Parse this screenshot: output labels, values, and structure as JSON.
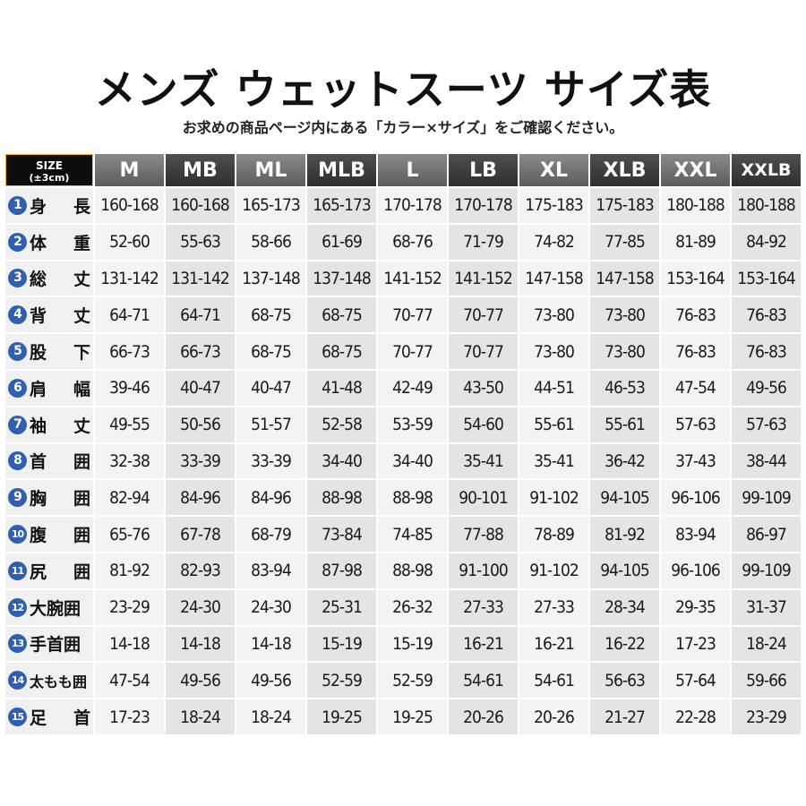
{
  "title": "メンズ ウェットスーツ サイズ表",
  "subtitle": "お求めの商品ページ内にある「カラー×サイズ」をご確認ください。",
  "corner": {
    "line1": "SIZE",
    "line2": "(±3cm)"
  },
  "sizes": [
    "M",
    "MB",
    "ML",
    "MLB",
    "L",
    "LB",
    "XL",
    "XLB",
    "XXL",
    "XXLB"
  ],
  "rows": [
    {
      "num": "1",
      "label": "身 長",
      "values": [
        "160-168",
        "160-168",
        "165-173",
        "165-173",
        "170-178",
        "170-178",
        "175-183",
        "175-183",
        "180-188",
        "180-188"
      ]
    },
    {
      "num": "2",
      "label": "体 重",
      "values": [
        "52-60",
        "55-63",
        "58-66",
        "61-69",
        "68-76",
        "71-79",
        "74-82",
        "77-85",
        "81-89",
        "84-92"
      ]
    },
    {
      "num": "3",
      "label": "総 丈",
      "values": [
        "131-142",
        "131-142",
        "137-148",
        "137-148",
        "141-152",
        "141-152",
        "147-158",
        "147-158",
        "153-164",
        "153-164"
      ]
    },
    {
      "num": "4",
      "label": "背 丈",
      "values": [
        "64-71",
        "64-71",
        "68-75",
        "68-75",
        "70-77",
        "70-77",
        "73-80",
        "73-80",
        "76-83",
        "76-83"
      ]
    },
    {
      "num": "5",
      "label": "股 下",
      "values": [
        "66-73",
        "66-73",
        "68-75",
        "68-75",
        "70-77",
        "70-77",
        "73-80",
        "73-80",
        "76-83",
        "76-83"
      ]
    },
    {
      "num": "6",
      "label": "肩 幅",
      "values": [
        "39-46",
        "40-47",
        "40-47",
        "41-48",
        "42-49",
        "43-50",
        "44-51",
        "46-53",
        "47-54",
        "49-56"
      ]
    },
    {
      "num": "7",
      "label": "袖 丈",
      "values": [
        "49-55",
        "50-56",
        "51-57",
        "52-58",
        "53-59",
        "54-60",
        "55-61",
        "55-61",
        "57-63",
        "57-63"
      ]
    },
    {
      "num": "8",
      "label": "首 囲",
      "values": [
        "32-38",
        "33-39",
        "33-39",
        "34-40",
        "34-40",
        "35-41",
        "35-41",
        "36-42",
        "37-43",
        "38-44"
      ]
    },
    {
      "num": "9",
      "label": "胸 囲",
      "values": [
        "82-94",
        "84-96",
        "84-96",
        "88-98",
        "88-98",
        "90-101",
        "91-102",
        "94-105",
        "96-106",
        "99-109"
      ]
    },
    {
      "num": "10",
      "label": "腹 囲",
      "values": [
        "65-76",
        "67-78",
        "68-79",
        "73-84",
        "74-85",
        "77-88",
        "78-89",
        "81-92",
        "83-94",
        "86-97"
      ]
    },
    {
      "num": "11",
      "label": "尻 囲",
      "values": [
        "81-92",
        "82-93",
        "83-94",
        "87-98",
        "88-98",
        "91-100",
        "91-102",
        "94-105",
        "96-106",
        "99-109"
      ]
    },
    {
      "num": "12",
      "label": "大腕囲",
      "values": [
        "23-29",
        "24-30",
        "24-30",
        "25-31",
        "26-32",
        "27-33",
        "27-33",
        "28-34",
        "29-35",
        "31-37"
      ]
    },
    {
      "num": "13",
      "label": "手首囲",
      "values": [
        "14-18",
        "14-18",
        "14-18",
        "15-19",
        "15-19",
        "16-21",
        "16-21",
        "16-22",
        "17-23",
        "18-24"
      ]
    },
    {
      "num": "14",
      "label": "太もも囲",
      "values": [
        "47-54",
        "49-56",
        "49-56",
        "52-59",
        "52-59",
        "54-61",
        "54-61",
        "56-63",
        "57-64",
        "59-66"
      ]
    },
    {
      "num": "15",
      "label": "足 首",
      "values": [
        "17-23",
        "18-24",
        "18-24",
        "19-25",
        "19-25",
        "20-26",
        "20-26",
        "21-27",
        "22-28",
        "23-29"
      ]
    }
  ]
}
